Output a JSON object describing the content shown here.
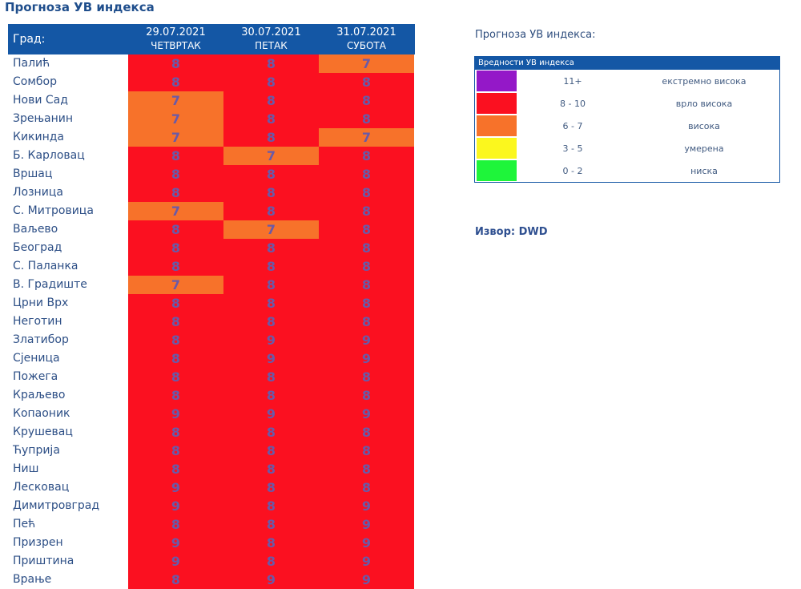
{
  "title": "Прогноза УВ индекса",
  "table": {
    "city_header": "Град:",
    "days": [
      {
        "date": "29.07.2021",
        "weekday": "ЧЕТВРТАК"
      },
      {
        "date": "30.07.2021",
        "weekday": "ПЕТАК"
      },
      {
        "date": "31.07.2021",
        "weekday": "СУБОТА"
      }
    ],
    "rows": [
      {
        "city": "Палић",
        "values": [
          "8",
          "8",
          "7"
        ]
      },
      {
        "city": "Сомбор",
        "values": [
          "8",
          "8",
          "8"
        ]
      },
      {
        "city": "Нови Сад",
        "values": [
          "7",
          "8",
          "8"
        ]
      },
      {
        "city": "Зрењанин",
        "values": [
          "7",
          "8",
          "8"
        ]
      },
      {
        "city": "Кикинда",
        "values": [
          "7",
          "8",
          "7"
        ]
      },
      {
        "city": "Б. Карловац",
        "values": [
          "8",
          "7",
          "8"
        ]
      },
      {
        "city": "Вршац",
        "values": [
          "8",
          "8",
          "8"
        ]
      },
      {
        "city": "Лозница",
        "values": [
          "8",
          "8",
          "8"
        ]
      },
      {
        "city": "С. Митровица",
        "values": [
          "7",
          "8",
          "8"
        ]
      },
      {
        "city": "Ваљево",
        "values": [
          "8",
          "7",
          "8"
        ]
      },
      {
        "city": "Београд",
        "values": [
          "8",
          "8",
          "8"
        ]
      },
      {
        "city": "С. Паланка",
        "values": [
          "8",
          "8",
          "8"
        ]
      },
      {
        "city": "В. Градиште",
        "values": [
          "7",
          "8",
          "8"
        ]
      },
      {
        "city": "Црни Врх",
        "values": [
          "8",
          "8",
          "8"
        ]
      },
      {
        "city": "Неготин",
        "values": [
          "8",
          "8",
          "8"
        ]
      },
      {
        "city": "Златибор",
        "values": [
          "8",
          "9",
          "9"
        ]
      },
      {
        "city": "Сјеница",
        "values": [
          "8",
          "9",
          "9"
        ]
      },
      {
        "city": "Пожега",
        "values": [
          "8",
          "8",
          "8"
        ]
      },
      {
        "city": "Краљево",
        "values": [
          "8",
          "8",
          "8"
        ]
      },
      {
        "city": "Копаоник",
        "values": [
          "9",
          "9",
          "9"
        ]
      },
      {
        "city": "Крушевац",
        "values": [
          "8",
          "8",
          "8"
        ]
      },
      {
        "city": "Ћуприја",
        "values": [
          "8",
          "8",
          "8"
        ]
      },
      {
        "city": "Ниш",
        "values": [
          "8",
          "8",
          "8"
        ]
      },
      {
        "city": "Лесковац",
        "values": [
          "9",
          "8",
          "8"
        ]
      },
      {
        "city": "Димитровград",
        "values": [
          "9",
          "8",
          "9"
        ]
      },
      {
        "city": "Пећ",
        "values": [
          "8",
          "8",
          "9"
        ]
      },
      {
        "city": "Призрен",
        "values": [
          "9",
          "8",
          "9"
        ]
      },
      {
        "city": "Приштина",
        "values": [
          "9",
          "8",
          "9"
        ]
      },
      {
        "city": "Врање",
        "values": [
          "8",
          "9",
          "9"
        ]
      }
    ]
  },
  "legend": {
    "caption": "Прогноза УВ индекса:",
    "header": "Вредности УВ индекса",
    "items": [
      {
        "range": "11+",
        "label": "екстремно висока",
        "color": "#9418c8"
      },
      {
        "range": "8 - 10",
        "label": "врло висока",
        "color": "#fb1020"
      },
      {
        "range": "6 - 7",
        "label": "висока",
        "color": "#f7722a"
      },
      {
        "range": "3 - 5",
        "label": "умерена",
        "color": "#fbf71e"
      },
      {
        "range": "0 - 2",
        "label": "ниска",
        "color": "#1ef53a"
      }
    ]
  },
  "source": "Извор: DWD"
}
